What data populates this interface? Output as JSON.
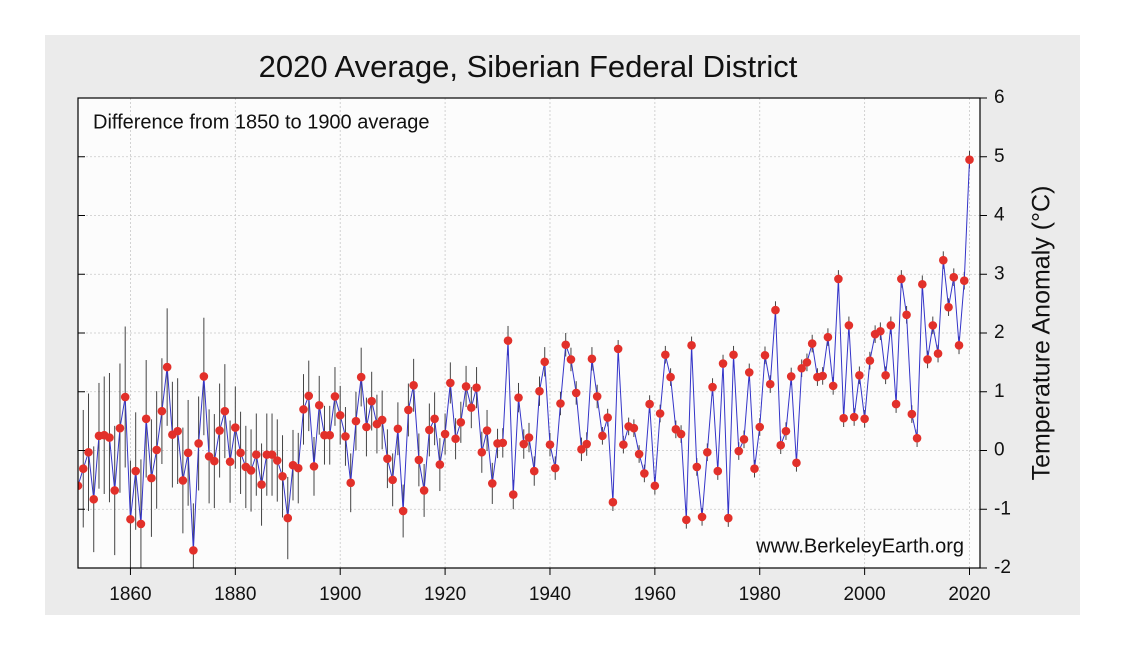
{
  "chart_data": {
    "type": "scatter-line",
    "title": "2020 Average, Siberian Federal District",
    "annotation": "Difference from 1850 to 1900 average",
    "source": "www.BerkeleyEarth.org",
    "ylabel": "Temperature Anomaly (°C)",
    "xlim": [
      1850,
      2022
    ],
    "ylim": [
      -2,
      6
    ],
    "xticks": [
      1860,
      1880,
      1900,
      1920,
      1940,
      1960,
      1980,
      2000,
      2020
    ],
    "yticks": [
      -2,
      -1,
      0,
      1,
      2,
      3,
      4,
      5,
      6
    ],
    "grid": true,
    "color": "#e2302a",
    "line_color": "#3434c8",
    "error_color": "#444444",
    "x": [
      1850,
      1851,
      1852,
      1853,
      1854,
      1855,
      1856,
      1857,
      1858,
      1859,
      1860,
      1861,
      1862,
      1863,
      1864,
      1865,
      1866,
      1867,
      1868,
      1869,
      1870,
      1871,
      1872,
      1873,
      1874,
      1875,
      1876,
      1877,
      1878,
      1879,
      1880,
      1881,
      1882,
      1883,
      1884,
      1885,
      1886,
      1887,
      1888,
      1889,
      1890,
      1891,
      1892,
      1893,
      1894,
      1895,
      1896,
      1897,
      1898,
      1899,
      1900,
      1901,
      1902,
      1903,
      1904,
      1905,
      1906,
      1907,
      1908,
      1909,
      1910,
      1911,
      1912,
      1913,
      1914,
      1915,
      1916,
      1917,
      1918,
      1919,
      1920,
      1921,
      1922,
      1923,
      1924,
      1925,
      1926,
      1927,
      1928,
      1929,
      1930,
      1931,
      1932,
      1933,
      1934,
      1935,
      1936,
      1937,
      1938,
      1939,
      1940,
      1941,
      1942,
      1943,
      1944,
      1945,
      1946,
      1947,
      1948,
      1949,
      1950,
      1951,
      1952,
      1953,
      1954,
      1955,
      1956,
      1957,
      1958,
      1959,
      1960,
      1961,
      1962,
      1963,
      1964,
      1965,
      1966,
      1967,
      1968,
      1969,
      1970,
      1971,
      1972,
      1973,
      1974,
      1975,
      1976,
      1977,
      1978,
      1979,
      1980,
      1981,
      1982,
      1983,
      1984,
      1985,
      1986,
      1987,
      1988,
      1989,
      1990,
      1991,
      1992,
      1993,
      1994,
      1995,
      1996,
      1997,
      1998,
      1999,
      2000,
      2001,
      2002,
      2003,
      2004,
      2005,
      2006,
      2007,
      2008,
      2009,
      2010,
      2011,
      2012,
      2013,
      2014,
      2015,
      2016,
      2017,
      2018,
      2019,
      2020
    ],
    "values": [
      -0.6,
      -0.31,
      -0.03,
      -0.83,
      0.25,
      0.26,
      0.22,
      -0.68,
      0.38,
      0.91,
      -1.17,
      -0.35,
      -1.25,
      0.54,
      -0.47,
      0.01,
      0.67,
      1.42,
      0.27,
      0.33,
      -0.51,
      -0.04,
      -1.7,
      0.12,
      1.26,
      -0.1,
      -0.18,
      0.34,
      0.67,
      -0.19,
      0.39,
      -0.04,
      -0.28,
      -0.34,
      -0.07,
      -0.58,
      -0.07,
      -0.07,
      -0.17,
      -0.44,
      -1.15,
      -0.25,
      -0.3,
      0.7,
      0.93,
      -0.27,
      0.77,
      0.26,
      0.26,
      0.92,
      0.6,
      0.24,
      -0.55,
      0.5,
      1.25,
      0.4,
      0.84,
      0.45,
      0.52,
      -0.14,
      -0.5,
      0.37,
      -1.03,
      0.69,
      1.11,
      -0.16,
      -0.68,
      0.35,
      0.54,
      -0.24,
      0.28,
      1.15,
      0.2,
      0.48,
      1.09,
      0.73,
      1.07,
      -0.03,
      0.34,
      -0.56,
      0.12,
      0.13,
      1.87,
      -0.75,
      0.9,
      0.11,
      0.22,
      -0.35,
      1.01,
      1.51,
      0.1,
      -0.3,
      0.8,
      1.8,
      1.55,
      0.98,
      0.02,
      0.11,
      1.56,
      0.92,
      0.25,
      0.56,
      -0.88,
      1.73,
      0.1,
      0.41,
      0.38,
      -0.06,
      -0.39,
      0.79,
      -0.6,
      0.63,
      1.63,
      1.25,
      0.36,
      0.28,
      -1.18,
      1.79,
      -0.28,
      -1.13,
      -0.03,
      1.08,
      -0.35,
      1.48,
      -1.15,
      1.63,
      -0.01,
      0.19,
      1.33,
      -0.31,
      0.4,
      1.62,
      1.13,
      2.39,
      0.09,
      0.33,
      1.26,
      -0.21,
      1.4,
      1.5,
      1.82,
      1.25,
      1.27,
      1.93,
      1.1,
      2.92,
      0.55,
      2.13,
      0.57,
      1.28,
      0.54,
      1.53,
      1.98,
      2.03,
      1.28,
      2.13,
      0.79,
      2.92,
      2.31,
      0.62,
      0.21,
      2.83,
      1.55,
      2.13,
      1.65,
      3.24,
      2.44,
      2.95,
      1.79,
      2.89,
      4.95
    ],
    "errors": [
      1.0,
      1.0,
      1.0,
      0.9,
      0.9,
      1.0,
      1.1,
      1.1,
      1.1,
      1.2,
      1.0,
      1.0,
      1.1,
      1.0,
      1.0,
      1.0,
      0.9,
      1.0,
      0.9,
      0.9,
      0.9,
      0.9,
      0.8,
      0.8,
      1.0,
      0.8,
      0.8,
      0.8,
      0.8,
      0.7,
      0.7,
      0.7,
      0.7,
      0.7,
      0.7,
      0.7,
      0.7,
      0.7,
      0.7,
      0.7,
      0.7,
      0.6,
      0.6,
      0.6,
      0.6,
      0.5,
      0.5,
      0.5,
      0.5,
      0.5,
      0.5,
      0.5,
      0.5,
      0.5,
      0.5,
      0.5,
      0.5,
      0.5,
      0.5,
      0.5,
      0.45,
      0.45,
      0.45,
      0.45,
      0.45,
      0.45,
      0.45,
      0.45,
      0.45,
      0.45,
      0.35,
      0.35,
      0.35,
      0.35,
      0.35,
      0.35,
      0.35,
      0.35,
      0.35,
      0.35,
      0.25,
      0.25,
      0.25,
      0.25,
      0.25,
      0.25,
      0.25,
      0.25,
      0.25,
      0.25,
      0.2,
      0.2,
      0.2,
      0.2,
      0.2,
      0.2,
      0.2,
      0.2,
      0.2,
      0.2,
      0.15,
      0.15,
      0.15,
      0.15,
      0.15,
      0.15,
      0.15,
      0.15,
      0.15,
      0.15,
      0.15,
      0.15,
      0.15,
      0.15,
      0.15,
      0.15,
      0.15,
      0.15,
      0.15,
      0.15,
      0.15,
      0.15,
      0.15,
      0.15,
      0.15,
      0.15,
      0.15,
      0.15,
      0.15,
      0.15,
      0.15,
      0.15,
      0.15,
      0.15,
      0.15,
      0.15,
      0.15,
      0.15,
      0.15,
      0.15,
      0.15,
      0.15,
      0.15,
      0.15,
      0.15,
      0.15,
      0.15,
      0.15,
      0.15,
      0.15,
      0.15,
      0.15,
      0.15,
      0.15,
      0.15,
      0.15,
      0.15,
      0.15,
      0.15,
      0.15,
      0.15,
      0.15,
      0.15,
      0.15,
      0.15,
      0.15,
      0.15,
      0.15,
      0.15,
      0.15,
      0.15
    ]
  }
}
